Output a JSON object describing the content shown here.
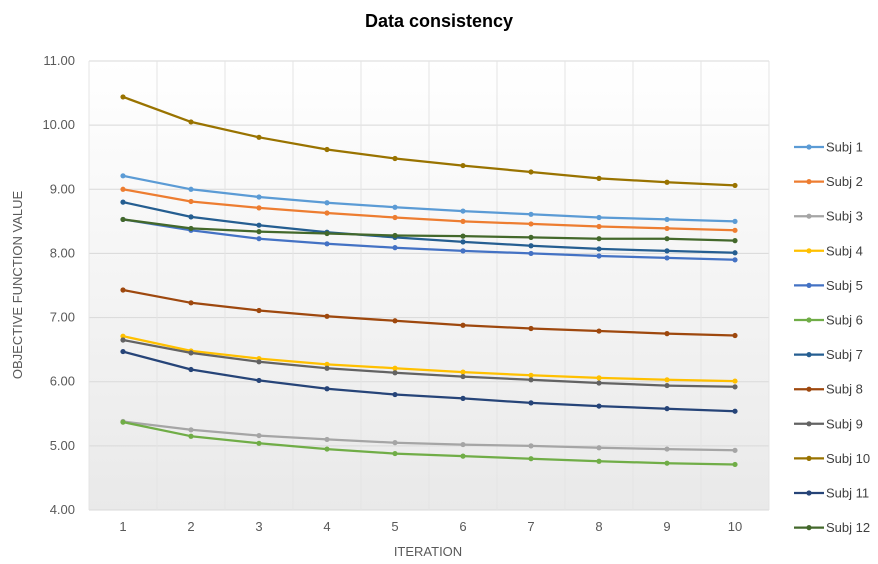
{
  "chart_data": {
    "type": "line",
    "title": "Data consistency",
    "xlabel": "ITERATION",
    "ylabel": "OBJECTIVE FUNCTION VALUE",
    "x": [
      1,
      2,
      3,
      4,
      5,
      6,
      7,
      8,
      9,
      10
    ],
    "x_tick_labels": [
      "1",
      "2",
      "3",
      "4",
      "5",
      "6",
      "7",
      "8",
      "9",
      "10"
    ],
    "ylim": [
      4.0,
      11.0
    ],
    "y_tick_labels": [
      "4.00",
      "5.00",
      "6.00",
      "7.00",
      "8.00",
      "9.00",
      "10.00",
      "11.00"
    ],
    "grid": "horizontal",
    "legend_position": "right",
    "series": [
      {
        "name": "Subj 1",
        "color": "#5B9BD5",
        "values": [
          9.21,
          9.0,
          8.88,
          8.79,
          8.72,
          8.66,
          8.61,
          8.56,
          8.53,
          8.5
        ]
      },
      {
        "name": "Subj 2",
        "color": "#ED7D31",
        "values": [
          9.0,
          8.81,
          8.71,
          8.63,
          8.56,
          8.5,
          8.46,
          8.42,
          8.39,
          8.36
        ]
      },
      {
        "name": "Subj 3",
        "color": "#A5A5A5",
        "values": [
          5.38,
          5.25,
          5.16,
          5.1,
          5.05,
          5.02,
          5.0,
          4.97,
          4.95,
          4.93
        ]
      },
      {
        "name": "Subj 4",
        "color": "#FFC000",
        "values": [
          6.71,
          6.48,
          6.36,
          6.27,
          6.21,
          6.15,
          6.1,
          6.06,
          6.03,
          6.01
        ]
      },
      {
        "name": "Subj 5",
        "color": "#4472C4",
        "values": [
          8.53,
          8.36,
          8.23,
          8.15,
          8.09,
          8.04,
          8.0,
          7.96,
          7.93,
          7.9
        ]
      },
      {
        "name": "Subj 6",
        "color": "#70AD47",
        "values": [
          5.37,
          5.15,
          5.04,
          4.95,
          4.88,
          4.84,
          4.8,
          4.76,
          4.73,
          4.71
        ]
      },
      {
        "name": "Subj 7",
        "color": "#255E91",
        "values": [
          8.8,
          8.57,
          8.44,
          8.33,
          8.25,
          8.18,
          8.12,
          8.07,
          8.04,
          8.01
        ]
      },
      {
        "name": "Subj 8",
        "color": "#9E480E",
        "values": [
          7.43,
          7.23,
          7.11,
          7.02,
          6.95,
          6.88,
          6.83,
          6.79,
          6.75,
          6.72
        ]
      },
      {
        "name": "Subj 9",
        "color": "#636363",
        "values": [
          6.65,
          6.45,
          6.31,
          6.21,
          6.14,
          6.08,
          6.03,
          5.98,
          5.94,
          5.92
        ]
      },
      {
        "name": "Subj 10",
        "color": "#997300",
        "values": [
          10.44,
          10.05,
          9.81,
          9.62,
          9.48,
          9.37,
          9.27,
          9.17,
          9.11,
          9.06
        ]
      },
      {
        "name": "Subj 11",
        "color": "#264478",
        "values": [
          6.47,
          6.19,
          6.02,
          5.89,
          5.8,
          5.74,
          5.67,
          5.62,
          5.58,
          5.54
        ]
      },
      {
        "name": "Subj 12",
        "color": "#43682B",
        "values": [
          8.53,
          8.39,
          8.34,
          8.31,
          8.28,
          8.27,
          8.25,
          8.23,
          8.23,
          8.2
        ]
      }
    ]
  }
}
